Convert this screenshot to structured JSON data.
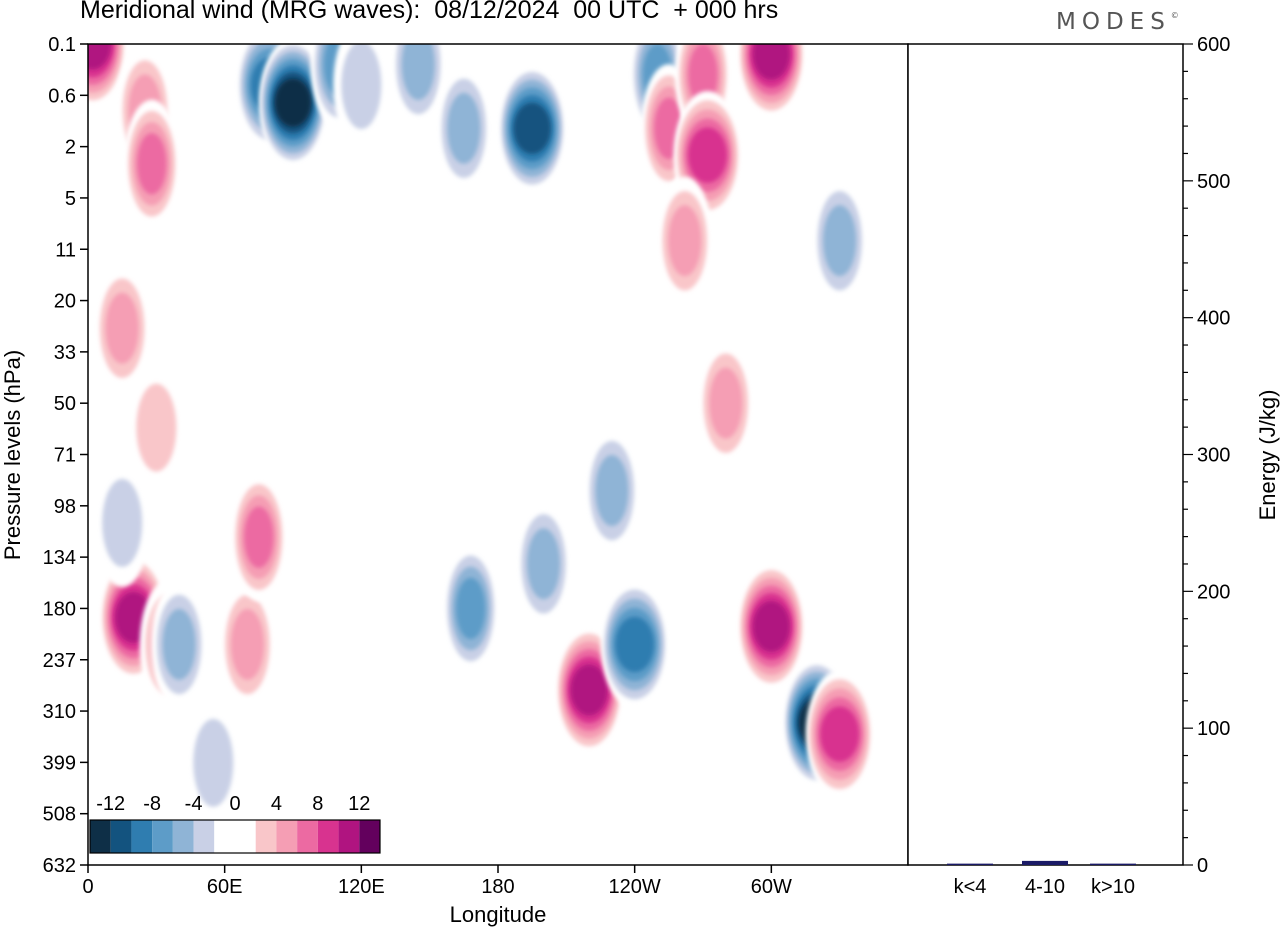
{
  "header": {
    "title": "Meridional wind (MRG waves):  08/12/2024  00 UTC  + 000 hrs",
    "brand": "MODES",
    "brand_mark": "©"
  },
  "chart_data": [
    {
      "type": "heatmap",
      "title": "Meridional wind (MRG waves):  08/12/2024  00 UTC  + 000 hrs",
      "xlabel": "Longitude",
      "ylabel": "Pressure levels (hPa)",
      "x_ticks": [
        "0",
        "60E",
        "120E",
        "180",
        "120W",
        "60W"
      ],
      "x_tick_values_deg_east": [
        0,
        60,
        120,
        180,
        240,
        300
      ],
      "xlim": [
        0,
        360
      ],
      "y_ticks": [
        "0.1",
        "0.6",
        "2",
        "5",
        "11",
        "20",
        "33",
        "50",
        "71",
        "98",
        "134",
        "180",
        "237",
        "310",
        "399",
        "508",
        "632"
      ],
      "y_axis_order": "top-to-bottom",
      "colorbar": {
        "labels": [
          "-12",
          "-8",
          "-4",
          "0",
          "4",
          "8",
          "12"
        ],
        "label_levels": [
          -12,
          -8,
          -4,
          0,
          4,
          8,
          12
        ],
        "levels": [
          -14,
          -12,
          -10,
          -8,
          -6,
          -4,
          -2,
          2,
          4,
          6,
          8,
          10,
          12,
          14
        ],
        "colors": [
          "#0e2f47",
          "#13537f",
          "#2f7db0",
          "#5d9cc8",
          "#8fb4d6",
          "#c9d0e6",
          "#ffffff",
          "#ffffff",
          "#f9c6c9",
          "#f59eb4",
          "#ec6aa2",
          "#d8338f",
          "#b01480",
          "#63005d"
        ]
      },
      "cells": [
        {
          "x": 2,
          "y": "0.1",
          "value": 12
        },
        {
          "x": 25,
          "y": "1",
          "value": 6
        },
        {
          "x": 28,
          "y": "3",
          "value": 8
        },
        {
          "x": 15,
          "y": "27",
          "value": 6
        },
        {
          "x": 30,
          "y": "60",
          "value": 4
        },
        {
          "x": 20,
          "y": "190",
          "value": 12
        },
        {
          "x": 35,
          "y": "220",
          "value": 6
        },
        {
          "x": 40,
          "y": "220",
          "value": -6
        },
        {
          "x": 15,
          "y": "110",
          "value": -4
        },
        {
          "x": 55,
          "y": "400",
          "value": -4
        },
        {
          "x": 70,
          "y": "220",
          "value": 6
        },
        {
          "x": 75,
          "y": "120",
          "value": 8
        },
        {
          "x": 80,
          "y": "0.5",
          "value": -10
        },
        {
          "x": 90,
          "y": "0.8",
          "value": -14
        },
        {
          "x": 110,
          "y": "0.3",
          "value": -8
        },
        {
          "x": 120,
          "y": "0.5",
          "value": -4
        },
        {
          "x": 145,
          "y": "0.3",
          "value": -6
        },
        {
          "x": 165,
          "y": "1.5",
          "value": -6
        },
        {
          "x": 168,
          "y": "180",
          "value": -8
        },
        {
          "x": 195,
          "y": "1.5",
          "value": -12
        },
        {
          "x": 200,
          "y": "140",
          "value": -6
        },
        {
          "x": 220,
          "y": "280",
          "value": 12
        },
        {
          "x": 240,
          "y": "220",
          "value": -10
        },
        {
          "x": 250,
          "y": "0.4",
          "value": -8
        },
        {
          "x": 255,
          "y": "1.5",
          "value": 8
        },
        {
          "x": 270,
          "y": "0.4",
          "value": 8
        },
        {
          "x": 272,
          "y": "2.5",
          "value": 10
        },
        {
          "x": 262,
          "y": "10",
          "value": 6
        },
        {
          "x": 300,
          "y": "0.2",
          "value": 12
        },
        {
          "x": 300,
          "y": "200",
          "value": 12
        },
        {
          "x": 320,
          "y": "330",
          "value": -14
        },
        {
          "x": 330,
          "y": "350",
          "value": 10
        },
        {
          "x": 330,
          "y": "10",
          "value": -6
        },
        {
          "x": 280,
          "y": "50",
          "value": 6
        },
        {
          "x": 230,
          "y": "90",
          "value": -6
        }
      ]
    },
    {
      "type": "bar",
      "ylabel": "Energy (J/kg)",
      "categories": [
        "k<4",
        "4-10",
        "k>10"
      ],
      "values": [
        1,
        3,
        1
      ],
      "ylim": [
        0,
        600
      ],
      "y_ticks": [
        "0",
        "100",
        "200",
        "300",
        "400",
        "500",
        "600"
      ],
      "bar_color": "#1a1a66"
    }
  ]
}
